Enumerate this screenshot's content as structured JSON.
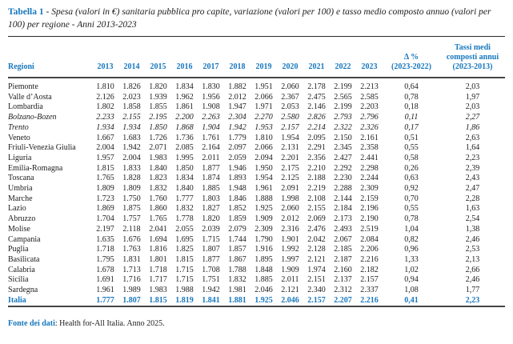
{
  "title": {
    "label": "Tabella 1",
    "separator": " - ",
    "text": "Spesa (valori in €) sanitaria pubblica pro capite, variazione (valori per 100) e tasso medio composto annuo (valori per 100) per regione - Anni 2013-2023"
  },
  "colors": {
    "accent_blue": "#1777be",
    "text": "#1c1c1c",
    "rule": "#454545"
  },
  "table": {
    "region_header": "Regioni",
    "year_headers": [
      "2013",
      "2014",
      "2015",
      "2016",
      "2017",
      "2018",
      "2019",
      "2020",
      "2021",
      "2022",
      "2023"
    ],
    "delta_header": {
      "line1": "Δ %",
      "line2": "(2023-2022)"
    },
    "cagr_header": {
      "line1": "Tassi medi",
      "line2": "composti annui",
      "line3": "(2023-2013)"
    },
    "rows": [
      {
        "region": "Piemonte",
        "style": "normal",
        "values": [
          "1.810",
          "1.826",
          "1.820",
          "1.834",
          "1.830",
          "1.882",
          "1.951",
          "2.060",
          "2.178",
          "2.199",
          "2.213"
        ],
        "delta": "0,64",
        "cagr": "2,03"
      },
      {
        "region": "Valle d’Aosta",
        "style": "normal",
        "values": [
          "2.126",
          "2.023",
          "1.939",
          "1.962",
          "1.956",
          "2.012",
          "2.066",
          "2.367",
          "2.475",
          "2.565",
          "2.585"
        ],
        "delta": "0,78",
        "cagr": "1,97"
      },
      {
        "region": "Lombardia",
        "style": "normal",
        "values": [
          "1.802",
          "1.858",
          "1.855",
          "1.861",
          "1.908",
          "1.947",
          "1.971",
          "2.053",
          "2.146",
          "2.199",
          "2.203"
        ],
        "delta": "0,18",
        "cagr": "2,03"
      },
      {
        "region": "Bolzano-Bozen",
        "style": "italic",
        "values": [
          "2.233",
          "2.155",
          "2.195",
          "2.200",
          "2.263",
          "2.304",
          "2.270",
          "2.580",
          "2.826",
          "2.793",
          "2.796"
        ],
        "delta": "0,11",
        "cagr": "2,27"
      },
      {
        "region": "Trento",
        "style": "italic",
        "values": [
          "1.934",
          "1.934",
          "1.850",
          "1.868",
          "1.904",
          "1.942",
          "1.953",
          "2.157",
          "2.214",
          "2.322",
          "2.326"
        ],
        "delta": "0,17",
        "cagr": "1,86"
      },
      {
        "region": "Veneto",
        "style": "normal",
        "values": [
          "1.667",
          "1.683",
          "1.726",
          "1.736",
          "1.761",
          "1.779",
          "1.810",
          "1.954",
          "2.095",
          "2.150",
          "2.161"
        ],
        "delta": "0,51",
        "cagr": "2,63"
      },
      {
        "region": "Friuli-Venezia Giulia",
        "style": "normal",
        "values": [
          "2.004",
          "1.942",
          "2.071",
          "2.085",
          "2.164",
          "2.097",
          "2.066",
          "2.131",
          "2.291",
          "2.345",
          "2.358"
        ],
        "delta": "0,55",
        "cagr": "1,64"
      },
      {
        "region": "Liguria",
        "style": "normal",
        "values": [
          "1.957",
          "2.004",
          "1.983",
          "1.995",
          "2.011",
          "2.059",
          "2.094",
          "2.201",
          "2.356",
          "2.427",
          "2.441"
        ],
        "delta": "0,58",
        "cagr": "2,23"
      },
      {
        "region": "Emilia-Romagna",
        "style": "normal",
        "values": [
          "1.815",
          "1.833",
          "1.840",
          "1.850",
          "1.877",
          "1.946",
          "1.950",
          "2.175",
          "2.210",
          "2.292",
          "2.298"
        ],
        "delta": "0,26",
        "cagr": "2,39"
      },
      {
        "region": "Toscana",
        "style": "normal",
        "values": [
          "1.765",
          "1.828",
          "1.823",
          "1.834",
          "1.874",
          "1.893",
          "1.954",
          "2.125",
          "2.188",
          "2.230",
          "2.244"
        ],
        "delta": "0,63",
        "cagr": "2,43"
      },
      {
        "region": "Umbria",
        "style": "normal",
        "values": [
          "1.809",
          "1.809",
          "1.832",
          "1.840",
          "1.885",
          "1.948",
          "1.961",
          "2.091",
          "2.219",
          "2.288",
          "2.309"
        ],
        "delta": "0,92",
        "cagr": "2,47"
      },
      {
        "region": "Marche",
        "style": "normal",
        "values": [
          "1.723",
          "1.750",
          "1.760",
          "1.777",
          "1.803",
          "1.846",
          "1.888",
          "1.998",
          "2.108",
          "2.144",
          "2.159"
        ],
        "delta": "0,70",
        "cagr": "2,28"
      },
      {
        "region": "Lazio",
        "style": "normal",
        "values": [
          "1.869",
          "1.875",
          "1.860",
          "1.832",
          "1.827",
          "1.852",
          "1.925",
          "2.060",
          "2.155",
          "2.184",
          "2.196"
        ],
        "delta": "0,55",
        "cagr": "1,63"
      },
      {
        "region": "Abruzzo",
        "style": "normal",
        "values": [
          "1.704",
          "1.757",
          "1.765",
          "1.778",
          "1.820",
          "1.859",
          "1.909",
          "2.012",
          "2.069",
          "2.173",
          "2.190"
        ],
        "delta": "0,78",
        "cagr": "2,54"
      },
      {
        "region": "Molise",
        "style": "normal",
        "values": [
          "2.197",
          "2.118",
          "2.041",
          "2.055",
          "2.039",
          "2.079",
          "2.309",
          "2.316",
          "2.476",
          "2.493",
          "2.519"
        ],
        "delta": "1,04",
        "cagr": "1,38"
      },
      {
        "region": "Campania",
        "style": "normal",
        "values": [
          "1.635",
          "1.676",
          "1.694",
          "1.695",
          "1.715",
          "1.744",
          "1.790",
          "1.901",
          "2.042",
          "2.067",
          "2.084"
        ],
        "delta": "0,82",
        "cagr": "2,46"
      },
      {
        "region": "Puglia",
        "style": "normal",
        "values": [
          "1.718",
          "1.763",
          "1.816",
          "1.825",
          "1.807",
          "1.857",
          "1.916",
          "1.992",
          "2.128",
          "2.185",
          "2.206"
        ],
        "delta": "0,96",
        "cagr": "2,53"
      },
      {
        "region": "Basilicata",
        "style": "normal",
        "values": [
          "1.795",
          "1.831",
          "1.801",
          "1.815",
          "1.877",
          "1.867",
          "1.895",
          "1.997",
          "2.121",
          "2.187",
          "2.216"
        ],
        "delta": "1,33",
        "cagr": "2,13"
      },
      {
        "region": "Calabria",
        "style": "normal",
        "values": [
          "1.678",
          "1.713",
          "1.718",
          "1.715",
          "1.708",
          "1.788",
          "1.848",
          "1.909",
          "1.974",
          "2.160",
          "2.182"
        ],
        "delta": "1,02",
        "cagr": "2,66"
      },
      {
        "region": "Sicilia",
        "style": "normal",
        "values": [
          "1.691",
          "1.716",
          "1.717",
          "1.715",
          "1.751",
          "1.832",
          "1.885",
          "2.011",
          "2.151",
          "2.137",
          "2.157"
        ],
        "delta": "0,94",
        "cagr": "2,46"
      },
      {
        "region": "Sardegna",
        "style": "normal",
        "values": [
          "1.961",
          "1.989",
          "1.983",
          "1.988",
          "1.942",
          "1.981",
          "2.046",
          "2.121",
          "2.340",
          "2.312",
          "2.337"
        ],
        "delta": "1,08",
        "cagr": "1,77"
      },
      {
        "region": "Italia",
        "style": "total",
        "values": [
          "1.777",
          "1.807",
          "1.815",
          "1.819",
          "1.841",
          "1.881",
          "1.925",
          "2.046",
          "2.157",
          "2.207",
          "2.216"
        ],
        "delta": "0,41",
        "cagr": "2,23"
      }
    ]
  },
  "footer": {
    "source_label": "Fonte dei dati",
    "source_text": ": Health for-All Italia. Anno 2025."
  }
}
